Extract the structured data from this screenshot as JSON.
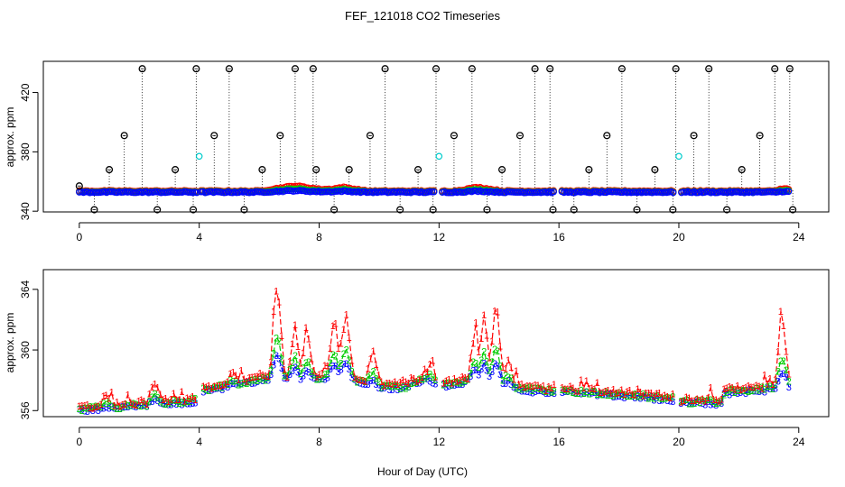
{
  "chart_data": [
    {
      "type": "scatter",
      "title": "FEF_121018  CO2 Timeseries",
      "xlabel": "",
      "ylabel": "approx. ppm",
      "xlim": [
        -1.2,
        25
      ],
      "ylim": [
        339.5,
        441
      ],
      "xticks": [
        0,
        4,
        8,
        12,
        16,
        20,
        24
      ],
      "yticks": [
        340,
        380,
        420
      ],
      "ytick_labels_drawn": [
        "340",
        "380",
        "420"
      ],
      "series": [
        {
          "name": "black spikes (circles)",
          "color": "#000000",
          "x": [
            0.0,
            0.5,
            1.0,
            1.5,
            2.1,
            2.6,
            3.2,
            3.8,
            3.9,
            4.5,
            5.0,
            5.5,
            6.1,
            6.7,
            7.2,
            7.8,
            7.9,
            8.5,
            9.0,
            9.7,
            10.2,
            10.7,
            11.3,
            11.8,
            11.9,
            12.5,
            13.1,
            13.6,
            14.1,
            14.7,
            15.2,
            15.7,
            15.8,
            16.5,
            17.0,
            17.6,
            18.1,
            18.6,
            19.2,
            19.8,
            19.9,
            20.5,
            21.0,
            21.6,
            22.1,
            22.7,
            23.2,
            23.7,
            23.8
          ],
          "y": [
            357,
            341,
            368,
            391,
            436,
            341,
            368,
            341,
            436,
            391,
            436,
            341,
            368,
            391,
            436,
            436,
            368,
            341,
            368,
            391,
            436,
            341,
            368,
            341,
            436,
            391,
            436,
            341,
            368,
            391,
            436,
            436,
            341,
            341,
            368,
            391,
            436,
            341,
            368,
            341,
            436,
            391,
            436,
            341,
            368,
            391,
            436,
            436,
            341
          ]
        },
        {
          "name": "cyan",
          "color": "#00cccc",
          "x": [
            4.0,
            12.0,
            20.0
          ],
          "y": [
            377,
            377,
            377
          ]
        },
        {
          "name": "1 (red)",
          "color": "#ff0000",
          "x": [],
          "y": []
        },
        {
          "name": "2 (green)",
          "color": "#00cc00",
          "x": [],
          "y": []
        },
        {
          "name": "3 (blue)",
          "color": "#0000ff",
          "x": [],
          "y": []
        }
      ]
    },
    {
      "type": "line",
      "title": "",
      "xlabel": "Hour of Day (UTC)",
      "ylabel": "approx. ppm",
      "xlim": [
        -1.2,
        25
      ],
      "ylim": [
        355.6,
        365.3
      ],
      "xticks": [
        0,
        4,
        8,
        12,
        16,
        20,
        24
      ],
      "yticks": [
        356,
        360,
        364
      ],
      "series": [
        {
          "name": "1",
          "color": "#ff0000",
          "x": [],
          "y": []
        },
        {
          "name": "2",
          "color": "#00cc00",
          "x": [],
          "y": []
        },
        {
          "name": "3",
          "color": "#0000ff",
          "x": [],
          "y": []
        }
      ]
    }
  ]
}
